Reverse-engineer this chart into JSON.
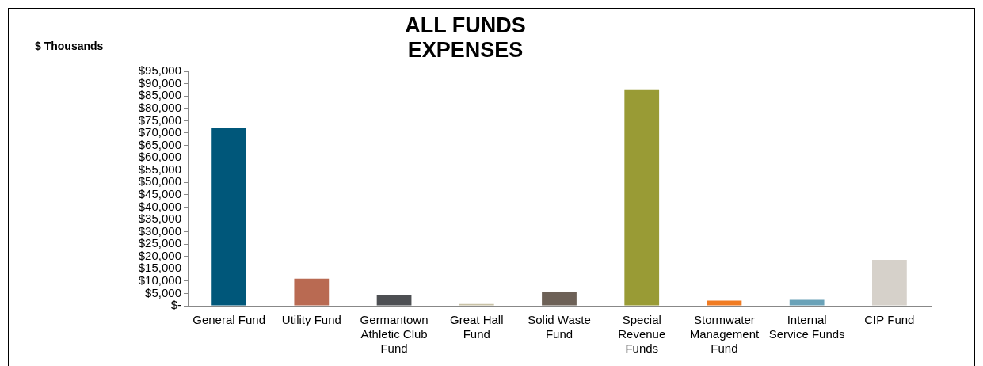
{
  "chart_data": {
    "type": "bar",
    "title": "ALL FUNDS\nEXPENSES",
    "ylabel": "$ Thousands",
    "categories": [
      "General Fund",
      "Utility Fund",
      "Germantown Athletic Club Fund",
      "Great Hall Fund",
      "Solid Waste Fund",
      "Special Revenue Funds",
      "Stormwater Management Fund",
      "Internal Service Funds",
      "CIP Fund"
    ],
    "values": [
      72000,
      11000,
      4400,
      700,
      5500,
      87700,
      2100,
      2400,
      18600
    ],
    "colors": [
      "#00577a",
      "#b96a52",
      "#4d4f53",
      "#c9c2a6",
      "#6d6157",
      "#999b35",
      "#f07b22",
      "#6aa2b8",
      "#d6d1ca"
    ],
    "ylim": [
      0,
      95000
    ],
    "yticks": [
      {
        "value": 0,
        "label": "$-"
      },
      {
        "value": 5000,
        "label": "$5,000"
      },
      {
        "value": 10000,
        "label": "$10,000"
      },
      {
        "value": 15000,
        "label": "$15,000"
      },
      {
        "value": 20000,
        "label": "$20,000"
      },
      {
        "value": 25000,
        "label": "$25,000"
      },
      {
        "value": 30000,
        "label": "$30,000"
      },
      {
        "value": 35000,
        "label": "$35,000"
      },
      {
        "value": 40000,
        "label": "$40,000"
      },
      {
        "value": 45000,
        "label": "$45,000"
      },
      {
        "value": 50000,
        "label": "$50,000"
      },
      {
        "value": 55000,
        "label": "$55,000"
      },
      {
        "value": 60000,
        "label": "$60,000"
      },
      {
        "value": 65000,
        "label": "$65,000"
      },
      {
        "value": 70000,
        "label": "$70,000"
      },
      {
        "value": 75000,
        "label": "$75,000"
      },
      {
        "value": 80000,
        "label": "$80,000"
      },
      {
        "value": 85000,
        "label": "$85,000"
      },
      {
        "value": 90000,
        "label": "$90,000"
      },
      {
        "value": 95000,
        "label": "$95,000"
      }
    ],
    "grid": false,
    "legend": false
  }
}
